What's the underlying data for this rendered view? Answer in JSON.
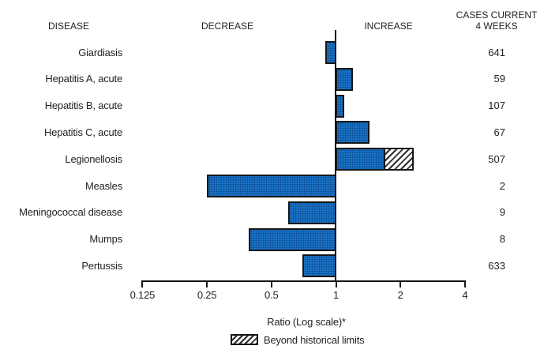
{
  "header": {
    "disease": "DISEASE",
    "decrease": "DECREASE",
    "increase": "INCREASE",
    "cases_line1": "CASES CURRENT",
    "cases_line2": "4 WEEKS"
  },
  "chart_data": {
    "type": "bar",
    "orientation": "horizontal",
    "scale": "log2",
    "baseline": 1,
    "axis": {
      "label": "Ratio (Log scale)*",
      "ticks": [
        0.125,
        0.25,
        0.5,
        1,
        2,
        4
      ],
      "tick_labels": [
        "0.125",
        "0.25",
        "0.5",
        "1",
        "2",
        "4"
      ],
      "range": [
        0.125,
        4
      ]
    },
    "legend": {
      "label": "Beyond historical limits",
      "swatch": "hatched"
    },
    "rows": [
      {
        "disease": "Giardiasis",
        "ratio": 0.89,
        "cases": "641"
      },
      {
        "disease": "Hepatitis A, acute",
        "ratio": 1.2,
        "cases": "59"
      },
      {
        "disease": "Hepatitis B, acute",
        "ratio": 1.09,
        "cases": "107"
      },
      {
        "disease": "Hepatitis C, acute",
        "ratio": 1.44,
        "cases": "67"
      },
      {
        "disease": "Legionellosis",
        "ratio": 1.7,
        "ratio_beyond": 2.3,
        "beyond_historical_limits": true,
        "cases": "507"
      },
      {
        "disease": "Measles",
        "ratio": 0.25,
        "cases": "2"
      },
      {
        "disease": "Meningococcal disease",
        "ratio": 0.6,
        "cases": "9"
      },
      {
        "disease": "Mumps",
        "ratio": 0.39,
        "cases": "8"
      },
      {
        "disease": "Pertussis",
        "ratio": 0.7,
        "cases": "633"
      }
    ],
    "colors": {
      "bar_fill": "#1b72c4",
      "bar_fill_dot": "#0a4e97",
      "bar_border": "#161616",
      "hatch_fg": "#2e2e2e",
      "hatch_bg": "#ffffff",
      "text": "#231f20"
    }
  }
}
